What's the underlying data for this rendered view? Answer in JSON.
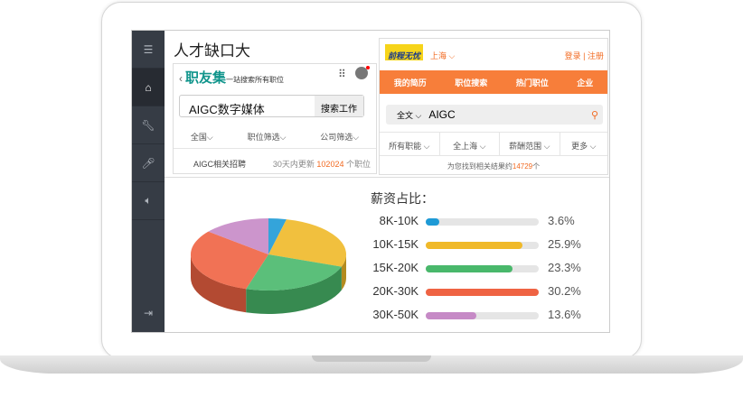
{
  "sidebar": {
    "items": [
      {
        "icon": "menu-icon"
      },
      {
        "icon": "home-icon"
      },
      {
        "icon": "wrench-icon"
      },
      {
        "icon": "microphone-icon"
      },
      {
        "icon": "volume-icon"
      },
      {
        "icon": "logout-icon"
      }
    ]
  },
  "title": "人才缺口大",
  "zhiyouji": {
    "brand": "职友集",
    "slogan": "一站搜索所有职位",
    "search_value": "AIGC数字媒体",
    "search_button": "搜索工作",
    "filters": [
      "全国",
      "职位筛选",
      "公司筛选"
    ],
    "result_label": "AIGC相关招聘",
    "result_prefix": "30天内更新",
    "result_count": "102024",
    "result_suffix": "个职位"
  },
  "job51": {
    "logo_text": "前程无忧",
    "city": "上海",
    "login": "登录",
    "register": "注册",
    "nav": [
      "我的简历",
      "职位搜索",
      "热门职位",
      "企业"
    ],
    "search_type": "全文",
    "search_value": "AIGC",
    "filters": [
      "所有职能",
      "全上海",
      "薪酬范围",
      "更多"
    ],
    "result_prefix": "为您找到相关结果约",
    "result_count": "14729",
    "result_suffix": "个"
  },
  "salary": {
    "title": "薪资占比：",
    "items": [
      {
        "label": "8K-10K",
        "percent": 3.6,
        "pct_text": "3.6%",
        "color": "#1e9ad6"
      },
      {
        "label": "10K-15K",
        "percent": 25.9,
        "pct_text": "25.9%",
        "color": "#f0b929"
      },
      {
        "label": "15K-20K",
        "percent": 23.3,
        "pct_text": "23.3%",
        "color": "#49b86b"
      },
      {
        "label": "20K-30K",
        "percent": 30.2,
        "pct_text": "30.2%",
        "color": "#ef6343"
      },
      {
        "label": "30K-50K",
        "percent": 13.6,
        "pct_text": "13.6%",
        "color": "#c68ac6"
      }
    ]
  }
}
